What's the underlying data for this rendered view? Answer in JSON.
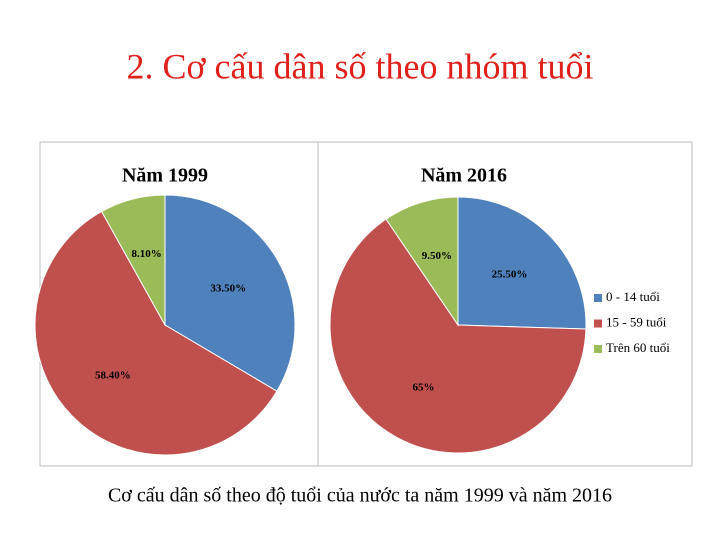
{
  "slide_title": "2. Cơ cấu dân số theo nhóm tuổi",
  "chart_data": [
    {
      "type": "pie",
      "title": "Năm 1999",
      "values": [
        33.5,
        58.4,
        8.1
      ],
      "value_labels": [
        "33.50%",
        "58.40%",
        "8.10%"
      ],
      "colors": [
        "#4f81bd",
        "#c0504d",
        "#9bbb59"
      ]
    },
    {
      "type": "pie",
      "title": "Năm 2016",
      "categories": [
        "0 - 14 tuổi",
        "15 - 59 tuổi",
        "Trên 60 tuổi"
      ],
      "values": [
        25.5,
        65,
        9.5
      ],
      "value_labels": [
        "25.50%",
        "65%",
        "9.50%"
      ],
      "colors": [
        "#4f81bd",
        "#c0504d",
        "#9bbb59"
      ],
      "legend": "right"
    }
  ],
  "caption": "Cơ cấu dân số theo độ tuổi của nước ta năm 1999 và năm 2016"
}
